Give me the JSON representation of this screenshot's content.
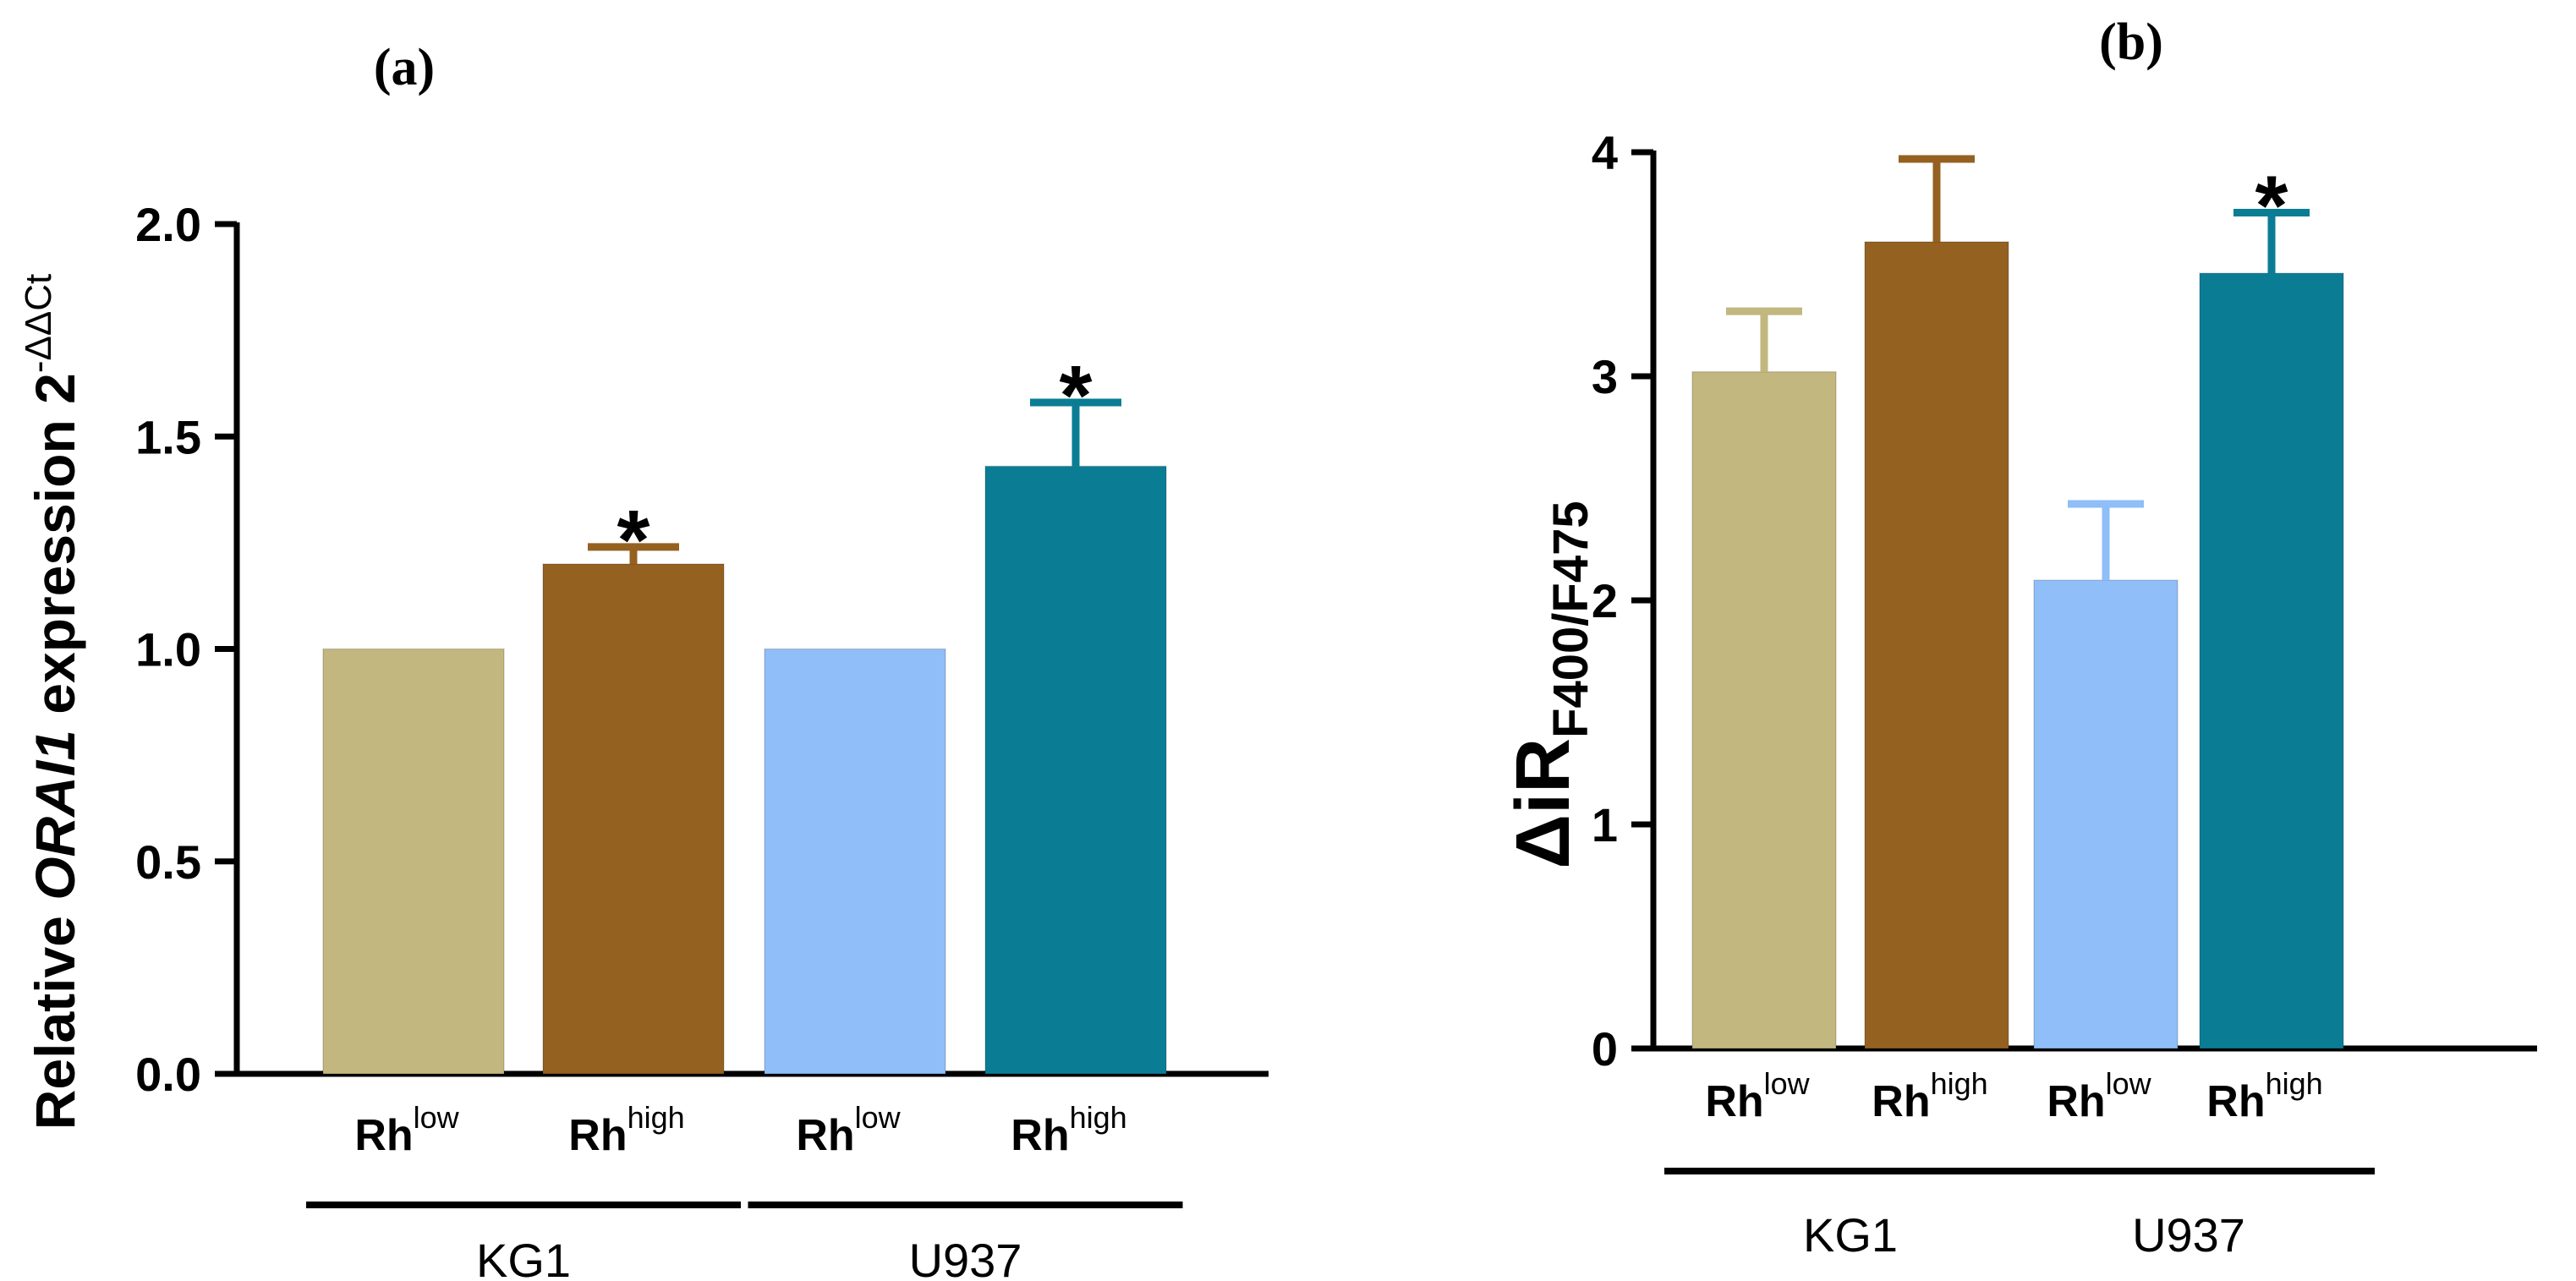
{
  "chart_data": [
    {
      "type": "bar",
      "panel_label": "(a)",
      "ylabel_prefix": "Relative ",
      "ylabel_gene": "ORAI1",
      "ylabel_suffix": " expression 2",
      "ylabel_sup": "-ΔΔCt",
      "ylim": [
        0,
        2.0
      ],
      "yticks": [
        "0.0",
        "0.5",
        "1.0",
        "1.5",
        "2.0"
      ],
      "ytick_values": [
        0,
        0.5,
        1.0,
        1.5,
        2.0
      ],
      "categories": [
        {
          "base": "Rh",
          "sup": "low"
        },
        {
          "base": "Rh",
          "sup": "high"
        },
        {
          "base": "Rh",
          "sup": "low"
        },
        {
          "base": "Rh",
          "sup": "high"
        }
      ],
      "values": [
        1.0,
        1.2,
        1.0,
        1.43
      ],
      "errors": [
        0,
        0.04,
        0,
        0.15
      ],
      "significance": [
        "",
        "*",
        "",
        "*"
      ],
      "colors": [
        "#c2b77e",
        "#946121",
        "#8fbef8",
        "#0a7d95"
      ],
      "groups": [
        {
          "label": "KG1",
          "members": [
            0,
            1
          ]
        },
        {
          "label": "U937",
          "members": [
            2,
            3
          ]
        }
      ]
    },
    {
      "type": "bar",
      "panel_label": "(b)",
      "ylabel_main": "ΔiR",
      "ylabel_sub": "F400/F475",
      "ylim": [
        0,
        4
      ],
      "yticks": [
        "0",
        "1",
        "2",
        "3",
        "4"
      ],
      "ytick_values": [
        0,
        1,
        2,
        3,
        4
      ],
      "categories": [
        {
          "base": "Rh",
          "sup": "low"
        },
        {
          "base": "Rh",
          "sup": "high"
        },
        {
          "base": "Rh",
          "sup": "low"
        },
        {
          "base": "Rh",
          "sup": "high"
        }
      ],
      "values": [
        3.02,
        3.6,
        2.09,
        3.46
      ],
      "errors": [
        0.27,
        0.37,
        0.34,
        0.27
      ],
      "significance": [
        "",
        "",
        "",
        "*"
      ],
      "colors": [
        "#c2b77e",
        "#946121",
        "#8fbef8",
        "#0a7d95"
      ],
      "groups": [
        {
          "label": "KG1",
          "members": [
            0,
            1
          ]
        },
        {
          "label": "U937",
          "members": [
            2,
            3
          ]
        }
      ]
    }
  ]
}
